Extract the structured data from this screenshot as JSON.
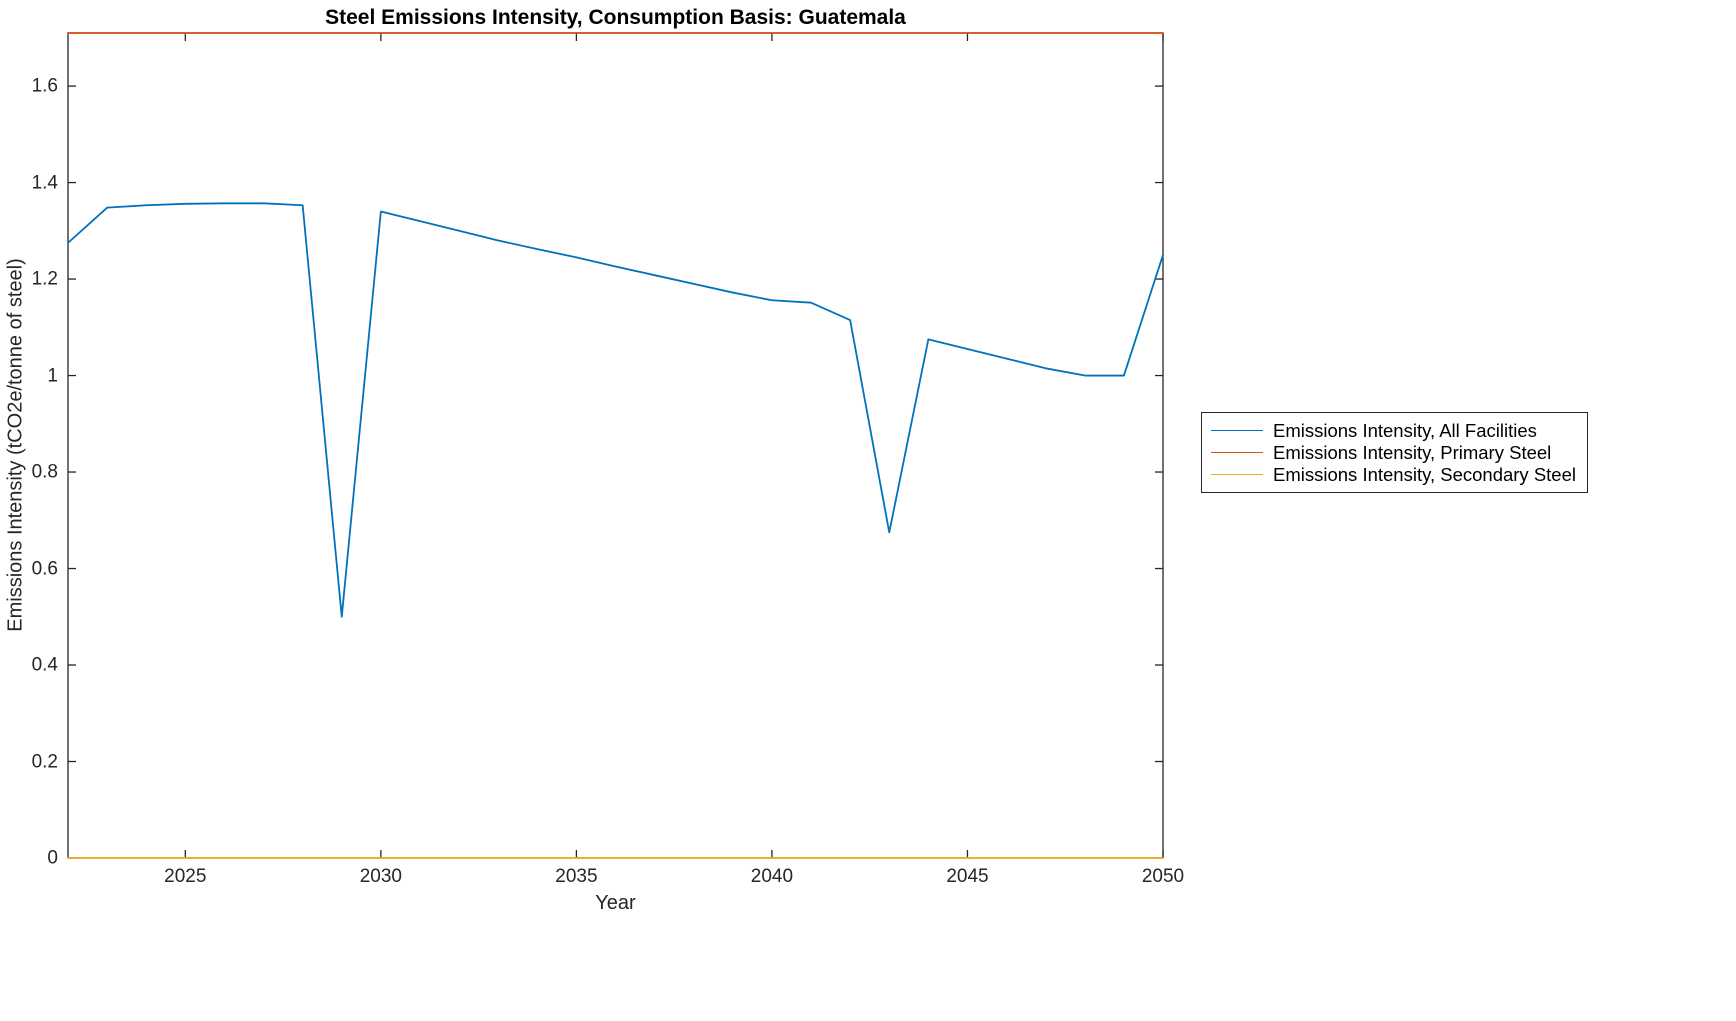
{
  "figure": {
    "background": "#ffffff",
    "axis_color": "#262626"
  },
  "chart_data": {
    "type": "line",
    "title": "Steel Emissions Intensity, Consumption Basis: Guatemala",
    "xlabel": "Year",
    "ylabel": "Emissions Intensity (tCO2e/tonne of steel)",
    "xlim": [
      2022,
      2050
    ],
    "ylim": [
      0,
      1.71
    ],
    "xticks": [
      2025,
      2030,
      2035,
      2040,
      2045,
      2050
    ],
    "yticks": [
      0,
      0.2,
      0.4,
      0.6,
      0.8,
      1,
      1.2,
      1.4,
      1.6
    ],
    "grid": false,
    "legend_position": "right-outside",
    "x": [
      2022,
      2023,
      2024,
      2025,
      2026,
      2027,
      2028,
      2029,
      2030,
      2031,
      2032,
      2033,
      2034,
      2035,
      2036,
      2037,
      2038,
      2039,
      2040,
      2041,
      2042,
      2043,
      2044,
      2045,
      2046,
      2047,
      2048,
      2049,
      2050
    ],
    "series": [
      {
        "name": "Emissions Intensity, All Facilities",
        "color": "#0072BD",
        "values": [
          1.275,
          1.348,
          1.353,
          1.356,
          1.357,
          1.357,
          1.353,
          0.5,
          1.34,
          1.32,
          1.3,
          1.28,
          1.262,
          1.245,
          1.226,
          1.208,
          1.19,
          1.172,
          1.156,
          1.151,
          1.115,
          0.675,
          1.075,
          1.055,
          1.035,
          1.015,
          1.0,
          1.0,
          1.25
        ]
      },
      {
        "name": "Emissions Intensity, Primary Steel",
        "color": "#D95319",
        "values": [
          1.71,
          1.71,
          1.71,
          1.71,
          1.71,
          1.71,
          1.71,
          1.71,
          1.71,
          1.71,
          1.71,
          1.71,
          1.71,
          1.71,
          1.71,
          1.71,
          1.71,
          1.71,
          1.71,
          1.71,
          1.71,
          1.71,
          1.71,
          1.71,
          1.71,
          1.71,
          1.71,
          1.71,
          1.71
        ]
      },
      {
        "name": "Emissions Intensity, Secondary Steel",
        "color": "#EDB120",
        "values": [
          0,
          0,
          0,
          0,
          0,
          0,
          0,
          0,
          0,
          0,
          0,
          0,
          0,
          0,
          0,
          0,
          0,
          0,
          0,
          0,
          0,
          0,
          0,
          0,
          0,
          0,
          0,
          0,
          0
        ]
      }
    ]
  }
}
